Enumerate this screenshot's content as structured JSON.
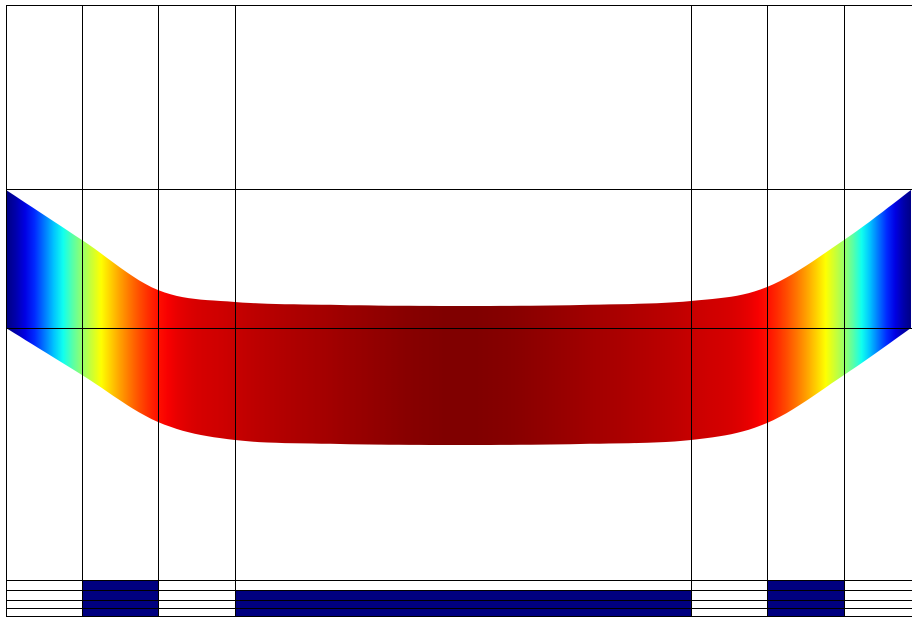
{
  "colors": {
    "background": "#ffffff",
    "grid_line": "#000000",
    "strip_fill": "#000080",
    "colormap": "jet",
    "colormap_stops": [
      "#000080",
      "#0000ff",
      "#00ffff",
      "#ffff00",
      "#ff0000",
      "#800000"
    ]
  },
  "band": {
    "colormap": "jet",
    "profile": [
      {
        "color_value": 0.0
      },
      {
        "color_value": 0.52
      },
      {
        "color_value": 0.86
      },
      {
        "color_value": 0.93
      },
      {
        "color_value": 0.97
      },
      {
        "color_value": 1.0
      },
      {
        "color_value": 0.97
      },
      {
        "color_value": 0.93
      },
      {
        "color_value": 0.86
      },
      {
        "color_value": 0.52
      },
      {
        "color_value": 0.0
      }
    ]
  },
  "bottom_strip": {
    "filled_segments": [
      {
        "id": "left-block"
      },
      {
        "id": "center-block"
      },
      {
        "id": "right-block"
      }
    ]
  }
}
